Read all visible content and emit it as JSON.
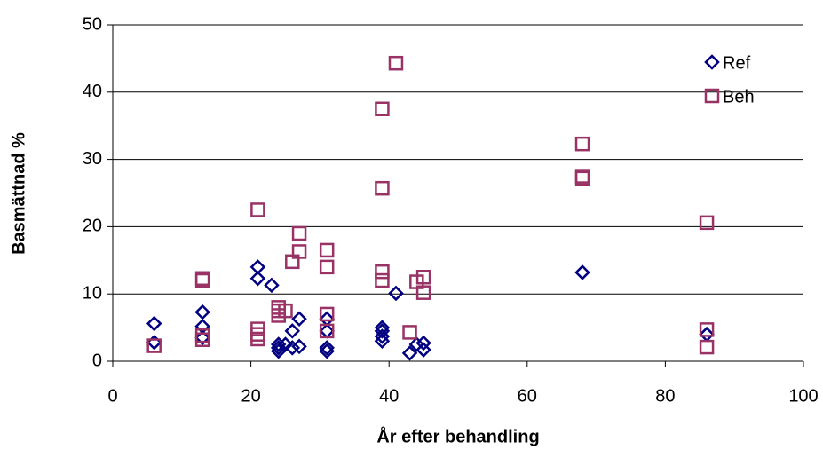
{
  "chart_data": {
    "type": "scatter",
    "x_label": "År efter behandling",
    "y_label": "Basmättnad %",
    "xlim": [
      0,
      100
    ],
    "xticks": [
      0,
      20,
      40,
      60,
      80,
      100
    ],
    "ylim": [
      0,
      50
    ],
    "yticks": [
      0,
      10,
      20,
      30,
      40,
      50
    ],
    "grid": true,
    "legend": "top-right",
    "series": [
      {
        "name": "Ref",
        "color": "#000080",
        "marker": "diamond",
        "x": [
          6,
          6,
          13,
          13,
          13,
          21,
          21,
          23,
          24,
          24,
          24,
          25,
          26,
          26,
          27,
          27,
          31,
          31,
          31,
          31,
          39,
          39,
          39,
          39,
          41,
          43,
          44,
          45,
          45,
          68,
          86
        ],
        "values": [
          5.6,
          2.8,
          7.3,
          5.2,
          3.5,
          14,
          12.3,
          11.3,
          2.5,
          2,
          1.5,
          2.5,
          4.5,
          2,
          6.3,
          2.2,
          6.3,
          4.5,
          2,
          1.5,
          5,
          4.5,
          3.7,
          3,
          10.1,
          1.2,
          2.5,
          2.7,
          1.7,
          13.2,
          4
        ]
      },
      {
        "name": "Beh",
        "color": "#993366",
        "marker": "square",
        "x": [
          6,
          13,
          13,
          13,
          13,
          21,
          21,
          21,
          21,
          24,
          24,
          24,
          25,
          26,
          27,
          27,
          31,
          31,
          31,
          31,
          39,
          39,
          39,
          39,
          41,
          43,
          44,
          45,
          45,
          68,
          68,
          68,
          86,
          86,
          86
        ],
        "values": [
          2.3,
          12.3,
          12,
          3.8,
          3.2,
          22.5,
          4.8,
          4,
          3.3,
          8,
          7.5,
          6.8,
          7.5,
          14.8,
          19,
          16.3,
          16.5,
          14,
          7,
          4.5,
          37.5,
          25.7,
          13.3,
          12,
          44.3,
          4.3,
          11.8,
          12.5,
          10.2,
          32.3,
          27.5,
          27.2,
          20.6,
          4.7,
          2.1
        ]
      }
    ]
  }
}
